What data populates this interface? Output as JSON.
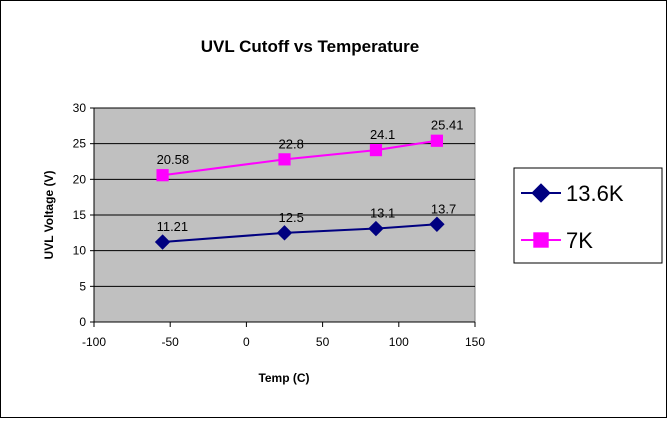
{
  "chart_data": {
    "type": "line",
    "title": "UVL Cutoff vs Temperature",
    "xlabel": "Temp (C)",
    "ylabel": "UVL Voltage (V)",
    "xlim": [
      -100,
      150
    ],
    "ylim": [
      0,
      30
    ],
    "xticks": [
      -100,
      -50,
      0,
      50,
      100,
      150
    ],
    "yticks": [
      0,
      5,
      10,
      15,
      20,
      25,
      30
    ],
    "x_tick_labels": [
      "-100",
      "-50",
      "0",
      "50",
      "100",
      "150"
    ],
    "y_tick_labels": [
      "0",
      "5",
      "10",
      "15",
      "20",
      "25",
      "30"
    ],
    "grid": "horizontal",
    "legend": "right",
    "series": [
      {
        "name": "13.6K",
        "color": "#000080",
        "marker": "diamond",
        "x": [
          -55,
          25,
          85,
          125
        ],
        "y": [
          11.21,
          12.5,
          13.1,
          13.7
        ],
        "labels": [
          "11.21",
          "12.5",
          "13.1",
          "13.7"
        ]
      },
      {
        "name": "7K",
        "color": "#FF00FF",
        "marker": "square",
        "x": [
          -55,
          25,
          85,
          125
        ],
        "y": [
          20.58,
          22.8,
          24.1,
          25.41
        ],
        "labels": [
          "20.58",
          "22.8",
          "24.1",
          "25.41"
        ]
      }
    ]
  }
}
